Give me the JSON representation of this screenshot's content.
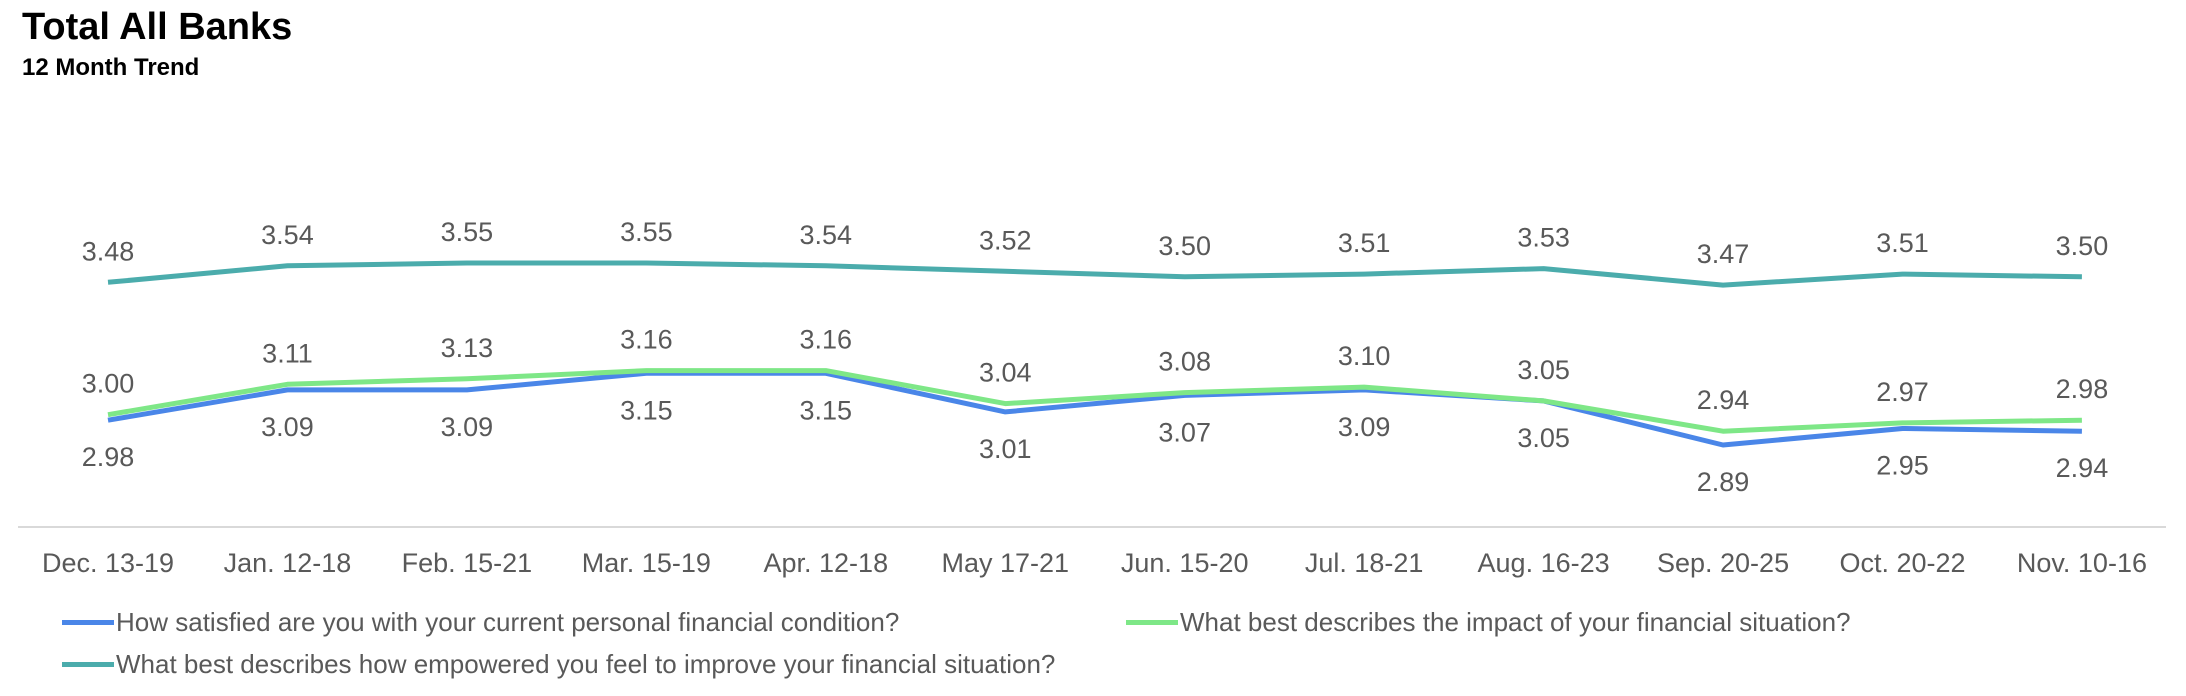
{
  "chart_data": {
    "type": "line",
    "title": "Total All Banks",
    "subtitle": "12 Month Trend",
    "categories": [
      "Dec. 13-19",
      "Jan. 12-18",
      "Feb. 15-21",
      "Mar. 15-19",
      "Apr. 12-18",
      "May 17-21",
      "Jun. 15-20",
      "Jul. 18-21",
      "Aug. 16-23",
      "Sep. 20-25",
      "Oct. 20-22",
      "Nov. 10-16"
    ],
    "series": [
      {
        "name": "How satisfied are you with your current personal financial condition?",
        "color": "#4a86e8",
        "values": [
          2.98,
          3.09,
          3.09,
          3.15,
          3.15,
          3.01,
          3.07,
          3.09,
          3.05,
          2.89,
          2.95,
          2.94
        ],
        "label_position": "below"
      },
      {
        "name": "What best describes the impact of your financial situation?",
        "color": "#7ee787",
        "values": [
          3.0,
          3.11,
          3.13,
          3.16,
          3.16,
          3.04,
          3.08,
          3.1,
          3.05,
          2.94,
          2.97,
          2.98
        ],
        "label_position": "above"
      },
      {
        "name": "What best describes how empowered you feel to improve your financial situation?",
        "color": "#4bacac",
        "values": [
          3.48,
          3.54,
          3.55,
          3.55,
          3.54,
          3.52,
          3.5,
          3.51,
          3.53,
          3.47,
          3.51,
          3.5
        ],
        "label_position": "above"
      }
    ],
    "legend_position": "bottom",
    "grid": false
  }
}
